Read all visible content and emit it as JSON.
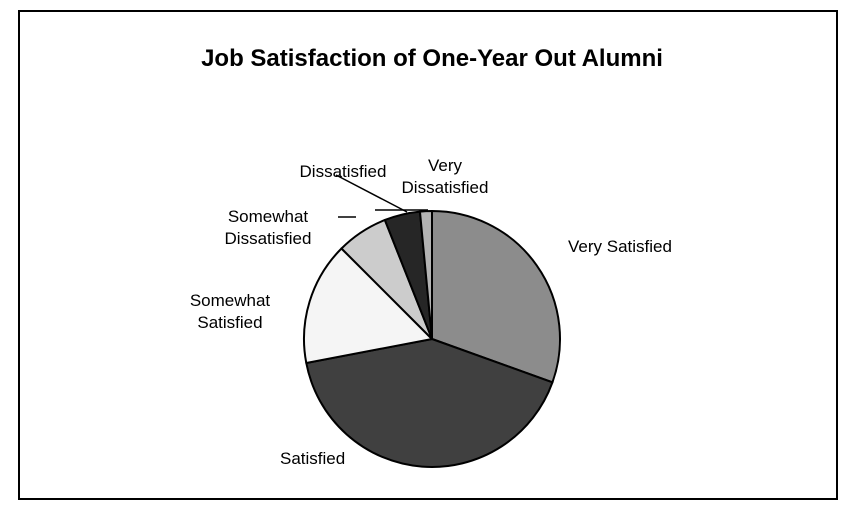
{
  "chart_data": {
    "type": "pie",
    "title": "Job Satisfaction of One-Year Out Alumni",
    "categories": [
      "Very Satisfied",
      "Satisfied",
      "Somewhat Satisfied",
      "Somewhat Dissatisfied",
      "Dissatisfied",
      "Very Dissatisfied"
    ],
    "label_lines": [
      [
        "Very Satisfied"
      ],
      [
        "Satisfied"
      ],
      [
        "Somewhat",
        "Satisfied"
      ],
      [
        "Somewhat",
        "Dissatisfied"
      ],
      [
        "Dissatisfied"
      ],
      [
        "Very",
        "Dissatisfied"
      ]
    ],
    "values": [
      30.5,
      41.5,
      15.5,
      6.5,
      4.5,
      1.5
    ],
    "colors": [
      "#8c8c8c",
      "#404040",
      "#f5f5f5",
      "#cccccc",
      "#262626",
      "#b3b3b3"
    ],
    "start_angle_deg": 0,
    "direction": "clockwise",
    "legend": "none"
  }
}
